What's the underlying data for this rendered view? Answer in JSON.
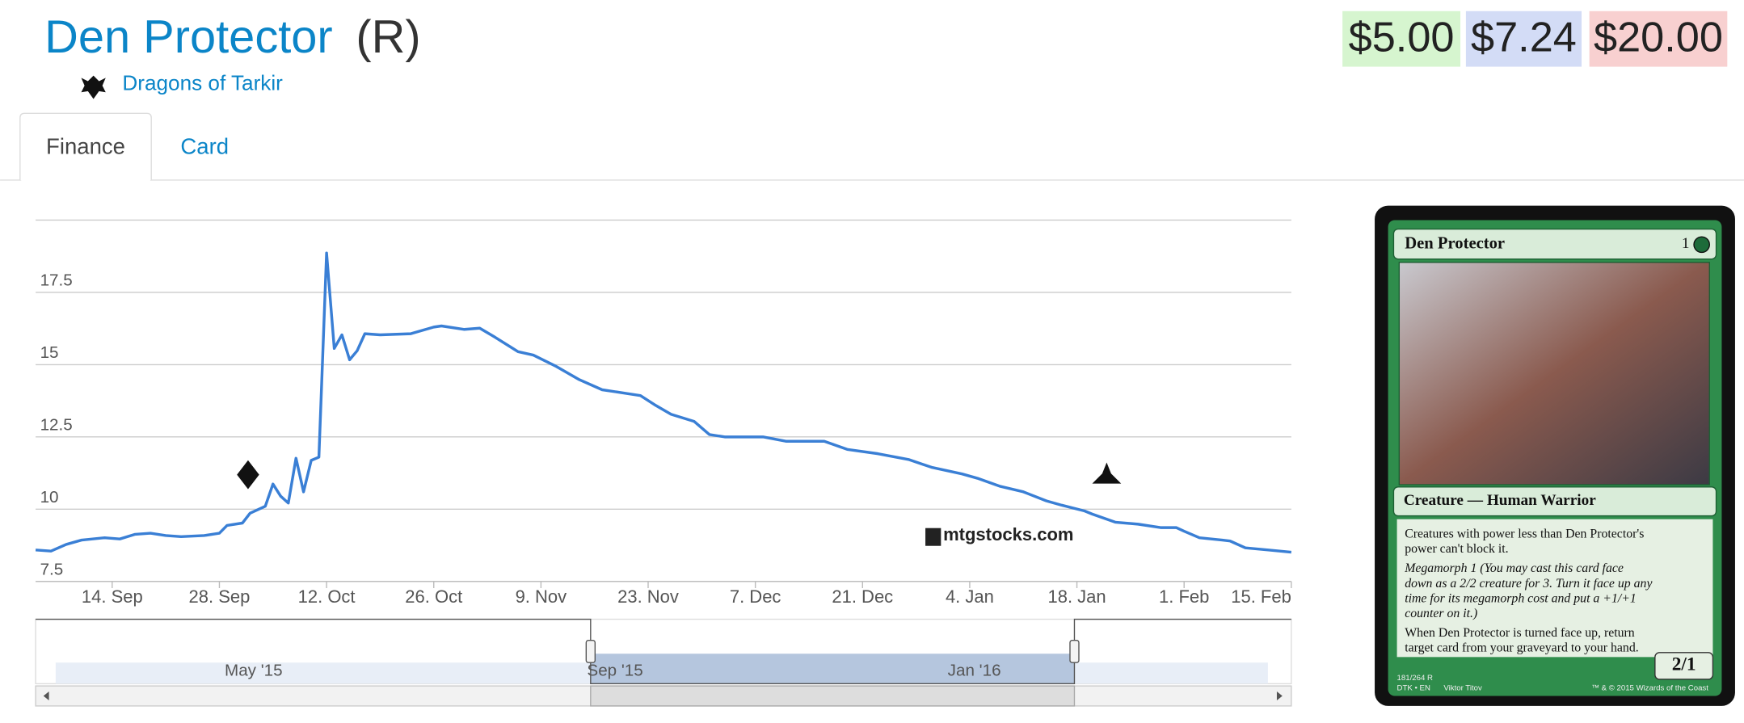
{
  "header": {
    "title": "Den Protector",
    "rarity": "(R)",
    "set": "Dragons of Tarkir",
    "prices": [
      "$5.00",
      "$7.24",
      "$20.00"
    ]
  },
  "tabs": [
    "Finance",
    "Card"
  ],
  "chart_data": {
    "type": "line",
    "x": [
      "4. Sep",
      "6. Sep",
      "8. Sep",
      "10. Sep",
      "13. Sep",
      "15. Sep",
      "17. Sep",
      "19. Sep",
      "21. Sep",
      "23. Sep",
      "26. Sep",
      "28. Sep",
      "29. Sep",
      "1. Oct",
      "2. Oct",
      "4. Oct",
      "5. Oct",
      "6. Oct",
      "7. Oct",
      "8. Oct",
      "9. Oct",
      "10. Oct",
      "11. Oct",
      "12. Oct",
      "13. Oct",
      "14. Oct",
      "15. Oct",
      "16. Oct",
      "17. Oct",
      "19. Oct",
      "23. Oct",
      "26. Oct",
      "27. Oct",
      "30. Oct",
      "1. Nov",
      "3. Nov",
      "6. Nov",
      "8. Nov",
      "11. Nov",
      "14. Nov",
      "17. Nov",
      "20. Nov",
      "22. Nov",
      "24. Nov",
      "26. Nov",
      "29. Nov",
      "1. Dec",
      "3. Dec",
      "8. Dec",
      "11. Dec",
      "16. Dec",
      "19. Dec",
      "23. Dec",
      "27. Dec",
      "30. Dec",
      "3. Jan",
      "5. Jan",
      "8. Jan",
      "11. Jan",
      "14. Jan",
      "16. Jan",
      "19. Jan",
      "20. Jan",
      "23. Jan",
      "26. Jan",
      "29. Jan",
      "31. Jan",
      "1. Feb",
      "3. Feb",
      "6. Feb",
      "7. Feb",
      "9. Feb",
      "12. Feb",
      "15. Feb"
    ],
    "series": [
      {
        "color": "#3a7fd5",
        "values": [
          8.59,
          8.55,
          8.78,
          8.93,
          9.01,
          8.97,
          9.13,
          9.17,
          9.09,
          9.05,
          9.09,
          9.17,
          9.44,
          9.52,
          9.86,
          10.1,
          10.87,
          10.45,
          10.21,
          11.76,
          10.6,
          11.69,
          11.8,
          18.86,
          15.56,
          16.03,
          15.17,
          15.48,
          16.07,
          16.03,
          16.07,
          16.3,
          16.34,
          16.22,
          16.26,
          15.95,
          15.45,
          15.33,
          14.94,
          14.48,
          14.13,
          14.01,
          13.93,
          13.59,
          13.28,
          13.04,
          12.58,
          12.5,
          12.5,
          12.35,
          12.35,
          12.07,
          11.92,
          11.72,
          11.45,
          11.22,
          11.07,
          10.79,
          10.6,
          10.29,
          10.14,
          9.94,
          9.83,
          9.55,
          9.48,
          9.36,
          9.36,
          9.24,
          9.01,
          8.93,
          8.9,
          8.66,
          8.59,
          8.51
        ]
      }
    ],
    "xlim": [
      "4. Sep",
      "15. Feb"
    ],
    "xticks": [
      "14. Sep",
      "28. Sep",
      "12. Oct",
      "26. Oct",
      "9. Nov",
      "23. Nov",
      "7. Dec",
      "21. Dec",
      "4. Jan",
      "18. Jan",
      "1. Feb",
      "15. Feb"
    ],
    "ylim": [
      7.5,
      20
    ],
    "yticks": [
      7.5,
      10,
      12.5,
      15,
      17.5
    ],
    "grid": true,
    "watermark": "mtgstocks.com",
    "navigator_labels": [
      "May '15",
      "Sep '15",
      "Jan '16"
    ]
  },
  "card": {
    "name": "Den Protector",
    "cost": "1",
    "type_line": "Creature — Human Warrior",
    "rules": [
      "Creatures with power less than Den Protector's",
      "power can't block it.",
      "Megamorph 1 (You may cast this card face",
      "down as a 2/2 creature for 3. Turn it face up any",
      "time for its megamorph cost and put a +1/+1",
      "counter on it.)",
      "When Den Protector is turned face up, return",
      "target card from your graveyard to your hand."
    ],
    "pt": "2/1",
    "collector": "181/264 R",
    "lang": "DTK • EN",
    "artist": "Viktor Titov",
    "copyright": "™ & © 2015 Wizards of the Coast"
  }
}
